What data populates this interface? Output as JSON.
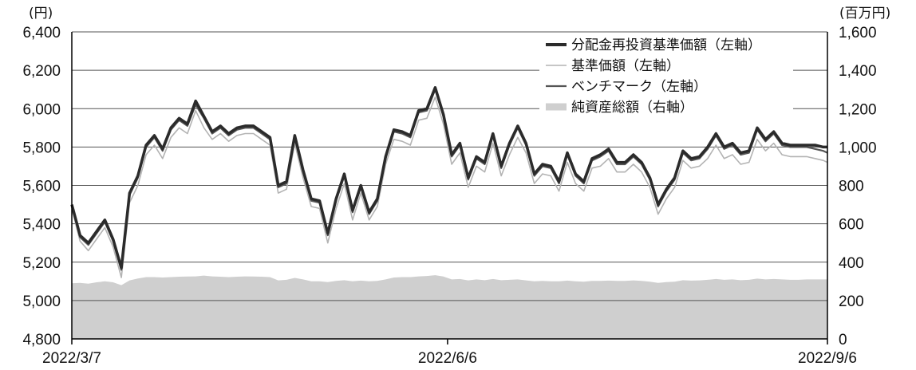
{
  "chart_data": {
    "type": "line",
    "left_axis": {
      "unit": "(円)",
      "min": 4800,
      "max": 6400,
      "step": 200,
      "ticks": [
        "6,400",
        "6,200",
        "6,000",
        "5,800",
        "5,600",
        "5,400",
        "5,200",
        "5,000",
        "4,800"
      ]
    },
    "right_axis": {
      "unit": "(百万円)",
      "min": 0,
      "max": 1600,
      "step": 200,
      "ticks": [
        "1,600",
        "1,400",
        "1,200",
        "1,000",
        "800",
        "600",
        "400",
        "200",
        "0"
      ]
    },
    "x_axis": {
      "start": "2022/3/7",
      "end": "2022/9/6",
      "labels": [
        {
          "text": "2022/3/7",
          "x": 0
        },
        {
          "text": "2022/6/6",
          "x": 91
        },
        {
          "text": "2022/9/6",
          "x": 183
        }
      ]
    },
    "legend": {
      "placement": "top-right",
      "items": [
        {
          "label": "分配金再投資基準価額（左軸）",
          "color": "#2b2b2b",
          "width": 4
        },
        {
          "label": "基準価額（左軸）",
          "color": "#b3b3b3",
          "width": 1.5
        },
        {
          "label": "ベンチマーク（左軸）",
          "color": "#555555",
          "width": 2.2
        },
        {
          "label": "純資産総額（右軸）",
          "color": "#cfcfcf",
          "width": 9
        }
      ]
    },
    "x": [
      0,
      2,
      4,
      6,
      8,
      10,
      12,
      14,
      16,
      18,
      20,
      22,
      24,
      26,
      28,
      30,
      32,
      34,
      36,
      38,
      40,
      42,
      44,
      46,
      48,
      50,
      52,
      54,
      56,
      58,
      60,
      62,
      64,
      66,
      68,
      70,
      72,
      74,
      76,
      78,
      80,
      82,
      84,
      86,
      88,
      90,
      92,
      94,
      96,
      98,
      100,
      102,
      104,
      106,
      108,
      110,
      112,
      114,
      116,
      118,
      120,
      122,
      124,
      126,
      128,
      130,
      132,
      134,
      136,
      138,
      140,
      142,
      144,
      146,
      148,
      150,
      152,
      154,
      156,
      158,
      160,
      162,
      164,
      166,
      168,
      170,
      172,
      174,
      176,
      178,
      180,
      182,
      183
    ],
    "series": [
      {
        "name": "分配金再投資基準価額（左軸）",
        "axis": "left",
        "values": [
          5500,
          5340,
          5300,
          5360,
          5420,
          5320,
          5170,
          5560,
          5650,
          5810,
          5860,
          5790,
          5900,
          5950,
          5920,
          6040,
          5960,
          5880,
          5910,
          5870,
          5900,
          5910,
          5910,
          5880,
          5850,
          5600,
          5620,
          5860,
          5680,
          5530,
          5520,
          5350,
          5530,
          5660,
          5470,
          5600,
          5460,
          5530,
          5750,
          5890,
          5880,
          5860,
          5990,
          6000,
          6110,
          5970,
          5760,
          5820,
          5640,
          5750,
          5720,
          5870,
          5700,
          5820,
          5910,
          5820,
          5660,
          5710,
          5700,
          5620,
          5770,
          5660,
          5620,
          5740,
          5760,
          5790,
          5720,
          5720,
          5760,
          5720,
          5640,
          5500,
          5580,
          5640,
          5780,
          5740,
          5750,
          5800,
          5870,
          5800,
          5820,
          5770,
          5780,
          5900,
          5840,
          5880,
          5820,
          5810,
          5810,
          5810,
          5810,
          5800,
          5800
        ],
        "color": "#2b2b2b"
      },
      {
        "name": "基準価額（左軸）",
        "axis": "left",
        "values": [
          5480,
          5310,
          5260,
          5320,
          5380,
          5280,
          5120,
          5510,
          5600,
          5760,
          5810,
          5740,
          5850,
          5900,
          5870,
          5990,
          5900,
          5840,
          5870,
          5830,
          5860,
          5870,
          5870,
          5840,
          5810,
          5560,
          5580,
          5820,
          5640,
          5490,
          5480,
          5300,
          5480,
          5610,
          5420,
          5560,
          5420,
          5490,
          5710,
          5840,
          5830,
          5810,
          5940,
          5950,
          6060,
          5920,
          5710,
          5770,
          5590,
          5700,
          5670,
          5820,
          5650,
          5760,
          5850,
          5770,
          5610,
          5660,
          5650,
          5570,
          5720,
          5610,
          5570,
          5690,
          5700,
          5740,
          5670,
          5670,
          5710,
          5670,
          5590,
          5450,
          5530,
          5590,
          5730,
          5690,
          5700,
          5740,
          5810,
          5740,
          5760,
          5710,
          5720,
          5840,
          5780,
          5820,
          5760,
          5750,
          5750,
          5750,
          5740,
          5730,
          5720
        ],
        "color": "#b3b3b3"
      },
      {
        "name": "ベンチマーク（左軸）",
        "axis": "left",
        "values": [
          5500,
          5330,
          5290,
          5350,
          5410,
          5310,
          5160,
          5550,
          5640,
          5800,
          5850,
          5780,
          5890,
          5940,
          5910,
          6020,
          5950,
          5870,
          5900,
          5860,
          5890,
          5900,
          5900,
          5870,
          5840,
          5590,
          5610,
          5850,
          5670,
          5520,
          5510,
          5340,
          5520,
          5650,
          5460,
          5590,
          5450,
          5520,
          5740,
          5880,
          5870,
          5850,
          5980,
          5990,
          6100,
          5960,
          5750,
          5810,
          5630,
          5740,
          5710,
          5860,
          5690,
          5810,
          5900,
          5810,
          5650,
          5700,
          5690,
          5610,
          5760,
          5650,
          5610,
          5730,
          5750,
          5780,
          5710,
          5710,
          5750,
          5710,
          5630,
          5490,
          5570,
          5630,
          5770,
          5730,
          5740,
          5790,
          5860,
          5790,
          5810,
          5760,
          5770,
          5890,
          5830,
          5870,
          5810,
          5800,
          5800,
          5800,
          5790,
          5780,
          5770
        ],
        "color": "#555555"
      },
      {
        "name": "純資産総額（右軸）",
        "axis": "right",
        "values": [
          290,
          292,
          288,
          295,
          300,
          295,
          280,
          305,
          315,
          322,
          322,
          320,
          322,
          324,
          325,
          326,
          330,
          326,
          324,
          322,
          324,
          326,
          325,
          324,
          322,
          305,
          308,
          318,
          310,
          300,
          300,
          296,
          302,
          306,
          300,
          304,
          300,
          302,
          310,
          320,
          322,
          322,
          326,
          328,
          332,
          325,
          310,
          312,
          305,
          310,
          306,
          312,
          306,
          308,
          310,
          305,
          300,
          302,
          300,
          300,
          304,
          300,
          298,
          302,
          302,
          304,
          302,
          302,
          305,
          302,
          298,
          292,
          296,
          298,
          306,
          304,
          305,
          308,
          312,
          308,
          310,
          306,
          308,
          314,
          310,
          312,
          310,
          308,
          308,
          310,
          310,
          310,
          310
        ],
        "color": "#cfcfcf"
      }
    ]
  }
}
